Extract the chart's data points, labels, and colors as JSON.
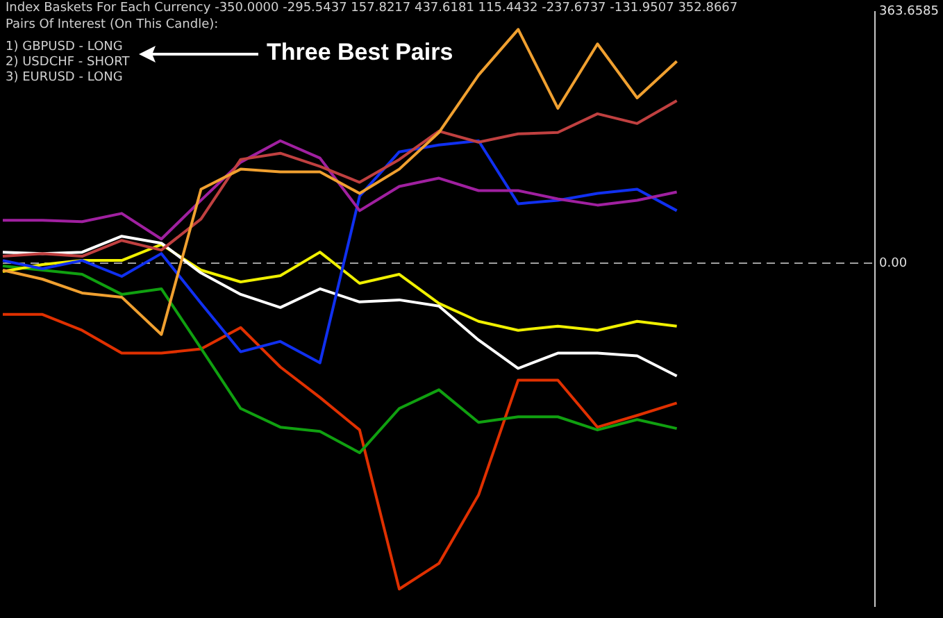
{
  "chart_data": {
    "type": "line",
    "title": "Index Baskets For Each Currency -350.0000 -295.5437 157.8217 437.6181 115.4432 -237.6737 -131.9507 352.8667",
    "subtitle": "Pairs Of Interest (On This Candle):",
    "annotations": [
      "1) GBPUSD - LONG",
      "2) USDCHF - SHORT",
      "3) EURUSD - LONG",
      "Three Best Pairs"
    ],
    "categories": [
      null,
      null,
      null,
      null,
      null,
      null,
      null,
      null,
      null,
      null,
      null,
      null,
      null,
      null,
      null,
      null,
      null,
      null,
      null,
      null,
      null,
      null,
      null
    ],
    "series": [
      {
        "color": "#f0a030",
        "values": [
          -10,
          -23,
          -43,
          -49,
          -103,
          107,
          136,
          132,
          132,
          101,
          136,
          189,
          272,
          338,
          224,
          317,
          239,
          292,
          null,
          null,
          null,
          null,
          null
        ]
      },
      {
        "color": "#c04040",
        "values": [
          10,
          14,
          10,
          33,
          19,
          64,
          150,
          159,
          140,
          117,
          150,
          191,
          175,
          187,
          189,
          216,
          202,
          235,
          null,
          null,
          null,
          null,
          null
        ]
      },
      {
        "color": "#a020a0",
        "values": [
          62,
          62,
          60,
          72,
          35,
          91,
          146,
          177,
          152,
          76,
          111,
          123,
          105,
          105,
          93,
          84,
          91,
          103,
          null,
          null,
          null,
          null,
          null
        ]
      },
      {
        "color": "#1030f0",
        "values": [
          4,
          -8,
          4,
          -19,
          14,
          -58,
          -128,
          -113,
          -144,
          97,
          161,
          171,
          177,
          86,
          91,
          101,
          107,
          76,
          null,
          null,
          null,
          null,
          null
        ]
      },
      {
        "color": "#ffffff",
        "values": [
          16,
          14,
          16,
          39,
          29,
          -14,
          -45,
          -64,
          -37,
          -56,
          -53,
          -62,
          -111,
          -152,
          -130,
          -130,
          -134,
          -163,
          null,
          null,
          null,
          null,
          null
        ]
      },
      {
        "color": "#f0f000",
        "values": [
          -12,
          -2,
          4,
          4,
          27,
          -10,
          -27,
          -18,
          16,
          -29,
          -16,
          -58,
          -84,
          -97,
          -91,
          -97,
          -84,
          -91,
          null,
          null,
          null,
          null,
          null
        ]
      },
      {
        "color": "#10a010",
        "values": [
          -4,
          -10,
          -16,
          -45,
          -37,
          -123,
          -210,
          -237,
          -243,
          -274,
          -210,
          -183,
          -230,
          -222,
          -222,
          -241,
          -226,
          -239,
          null,
          null,
          null,
          null,
          null
        ]
      },
      {
        "color": "#e03000",
        "values": [
          -74,
          -74,
          -97,
          -130,
          -130,
          -124,
          -93,
          -150,
          -194,
          -241,
          -471,
          -434,
          -335,
          -169,
          -169,
          -237,
          -220,
          -202,
          null,
          null,
          null,
          null,
          null
        ]
      }
    ],
    "ylim": [
      -496,
      363.6585
    ],
    "yticks": [
      {
        "value": 0,
        "label": "0.00"
      },
      363.6585
    ],
    "ref_lines": [
      {
        "axis": "y",
        "value": 0,
        "color": "#a0a0a0",
        "line_style": "dashed"
      }
    ],
    "tick_labels": "y",
    "grid": false,
    "legend": false,
    "marker": "none",
    "line_style": "solid"
  }
}
